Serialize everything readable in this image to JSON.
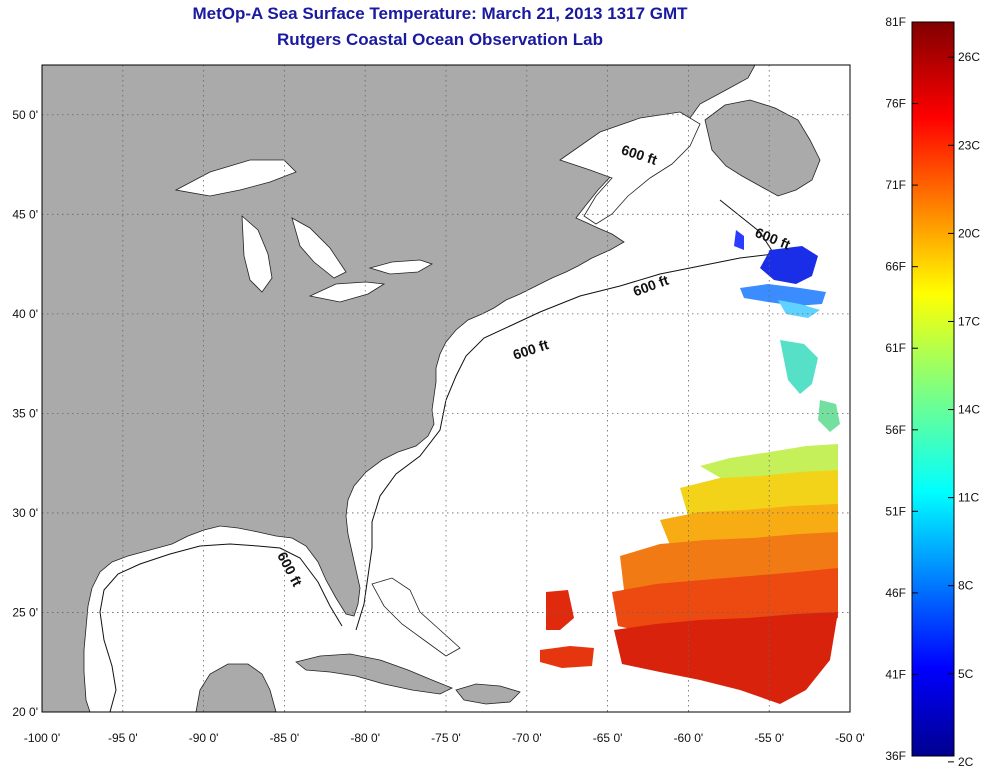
{
  "header": {
    "title": "MetOp-A Sea Surface Temperature:  March 21, 2013 1317 GMT",
    "subtitle": "Rutgers Coastal Ocean Observation Lab"
  },
  "map": {
    "lon_range": [
      -100,
      -50
    ],
    "lat_range": [
      20,
      52.5
    ],
    "lon_ticks": [
      {
        "value": -100,
        "label": "-100 0'"
      },
      {
        "value": -95,
        "label": "-95 0'"
      },
      {
        "value": -90,
        "label": "-90 0'"
      },
      {
        "value": -85,
        "label": "-85 0'"
      },
      {
        "value": -80,
        "label": "-80 0'"
      },
      {
        "value": -75,
        "label": "-75 0'"
      },
      {
        "value": -70,
        "label": "-70 0'"
      },
      {
        "value": -65,
        "label": "-65 0'"
      },
      {
        "value": -60,
        "label": "-60 0'"
      },
      {
        "value": -55,
        "label": "-55 0'"
      },
      {
        "value": -50,
        "label": "-50 0'"
      }
    ],
    "lat_ticks": [
      {
        "value": 20,
        "label": "20 0'"
      },
      {
        "value": 25,
        "label": "25 0'"
      },
      {
        "value": 30,
        "label": "30 0'"
      },
      {
        "value": 35,
        "label": "35 0'"
      },
      {
        "value": 40,
        "label": "40 0'"
      },
      {
        "value": 45,
        "label": "45 0'"
      },
      {
        "value": 50,
        "label": "50 0'"
      }
    ],
    "contour_labels": [
      "600 ft",
      "600 ft",
      "600 ft",
      "600 ft",
      "600 ft"
    ],
    "colors": {
      "land": "#aaaaaa",
      "water": "#ffffff",
      "grid": "#666666"
    }
  },
  "colorbar": {
    "fahrenheit": [
      "81F",
      "76F",
      "71F",
      "66F",
      "61F",
      "56F",
      "51F",
      "46F",
      "41F",
      "36F"
    ],
    "celsius": [
      "26C",
      "23C",
      "20C",
      "17C",
      "14C",
      "11C",
      "8C",
      "5C",
      "2C"
    ],
    "f_range": [
      36,
      81
    ],
    "c_range": [
      2.2,
      27.2
    ]
  }
}
